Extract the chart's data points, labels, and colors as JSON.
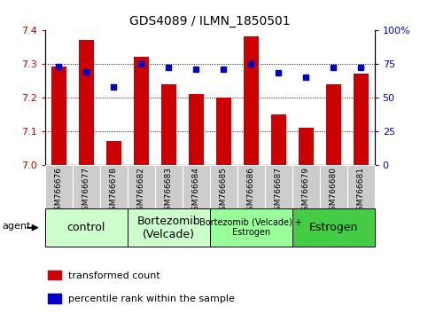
{
  "title": "GDS4089 / ILMN_1850501",
  "samples": [
    "GSM766676",
    "GSM766677",
    "GSM766678",
    "GSM766682",
    "GSM766683",
    "GSM766684",
    "GSM766685",
    "GSM766686",
    "GSM766687",
    "GSM766679",
    "GSM766680",
    "GSM766681"
  ],
  "red_values": [
    7.29,
    7.37,
    7.07,
    7.32,
    7.24,
    7.21,
    7.2,
    7.38,
    7.15,
    7.11,
    7.24,
    7.27
  ],
  "blue_values": [
    73,
    69,
    58,
    75,
    72,
    71,
    71,
    75,
    68,
    65,
    72,
    72
  ],
  "ylim_left": [
    7.0,
    7.4
  ],
  "ylim_right": [
    0,
    100
  ],
  "yticks_left": [
    7.0,
    7.1,
    7.2,
    7.3,
    7.4
  ],
  "yticks_right": [
    0,
    25,
    50,
    75,
    100
  ],
  "ytick_labels_right": [
    "0",
    "25",
    "50",
    "75",
    "100%"
  ],
  "bar_color": "#cc0000",
  "dot_color": "#0000cc",
  "left_axis_color": "#cc0000",
  "right_axis_color": "#0000cc",
  "legend_red": "transformed count",
  "legend_blue": "percentile rank within the sample",
  "agent_label": "agent",
  "groups": [
    {
      "label": "control",
      "start": 0,
      "end": 3,
      "color": "#ccffcc"
    },
    {
      "label": "Bortezomib\n(Velcade)",
      "start": 3,
      "end": 6,
      "color": "#ccffcc"
    },
    {
      "label": "Bortezomib (Velcade) +\nEstrogen",
      "start": 6,
      "end": 9,
      "color": "#99ff99"
    },
    {
      "label": "Estrogen",
      "start": 9,
      "end": 12,
      "color": "#44cc44"
    }
  ],
  "group_fontsizes": [
    9,
    9,
    7,
    9
  ]
}
